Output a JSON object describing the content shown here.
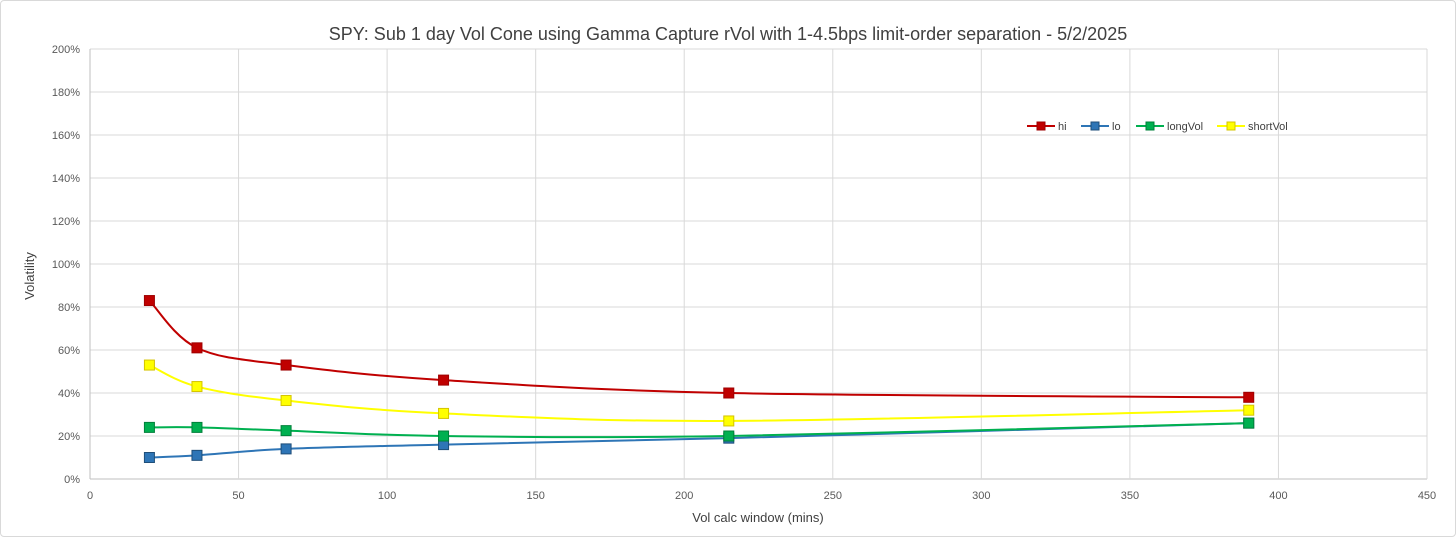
{
  "chart_data": {
    "type": "scatter",
    "title": "SPY: Sub 1 day Vol Cone using Gamma Capture rVol with 1-4.5bps limit-order separation - 5/2/2025",
    "xlabel": "Vol calc window (mins)",
    "ylabel": "Volatility",
    "xlim": [
      0,
      450
    ],
    "ylim": [
      0,
      200
    ],
    "x_ticks": [
      0,
      50,
      100,
      150,
      200,
      250,
      300,
      350,
      400,
      450
    ],
    "y_ticks": [
      0,
      20,
      40,
      60,
      80,
      100,
      120,
      140,
      160,
      180,
      200
    ],
    "y_tick_labels": [
      "0%",
      "20%",
      "40%",
      "60%",
      "80%",
      "100%",
      "120%",
      "140%",
      "160%",
      "180%",
      "200%"
    ],
    "grid": true,
    "smooth_lines": true,
    "legend_position": "top-right",
    "series": [
      {
        "name": "hi",
        "color": "#c00000",
        "x": [
          20,
          36,
          66,
          119,
          215,
          390
        ],
        "y": [
          83,
          61,
          53,
          46,
          40,
          38
        ]
      },
      {
        "name": "lo",
        "color": "#2e75b6",
        "x": [
          20,
          36,
          66,
          119,
          215,
          390
        ],
        "y": [
          10,
          11,
          14,
          16,
          19,
          26
        ]
      },
      {
        "name": "longVol",
        "color": "#00b050",
        "x": [
          20,
          36,
          66,
          119,
          215,
          390
        ],
        "y": [
          24,
          24,
          22.5,
          20,
          20,
          26
        ]
      },
      {
        "name": "shortVol",
        "color": "#ffff00",
        "x": [
          20,
          36,
          66,
          119,
          215,
          390
        ],
        "y": [
          53,
          43,
          36.5,
          30.5,
          27,
          32
        ]
      }
    ]
  }
}
